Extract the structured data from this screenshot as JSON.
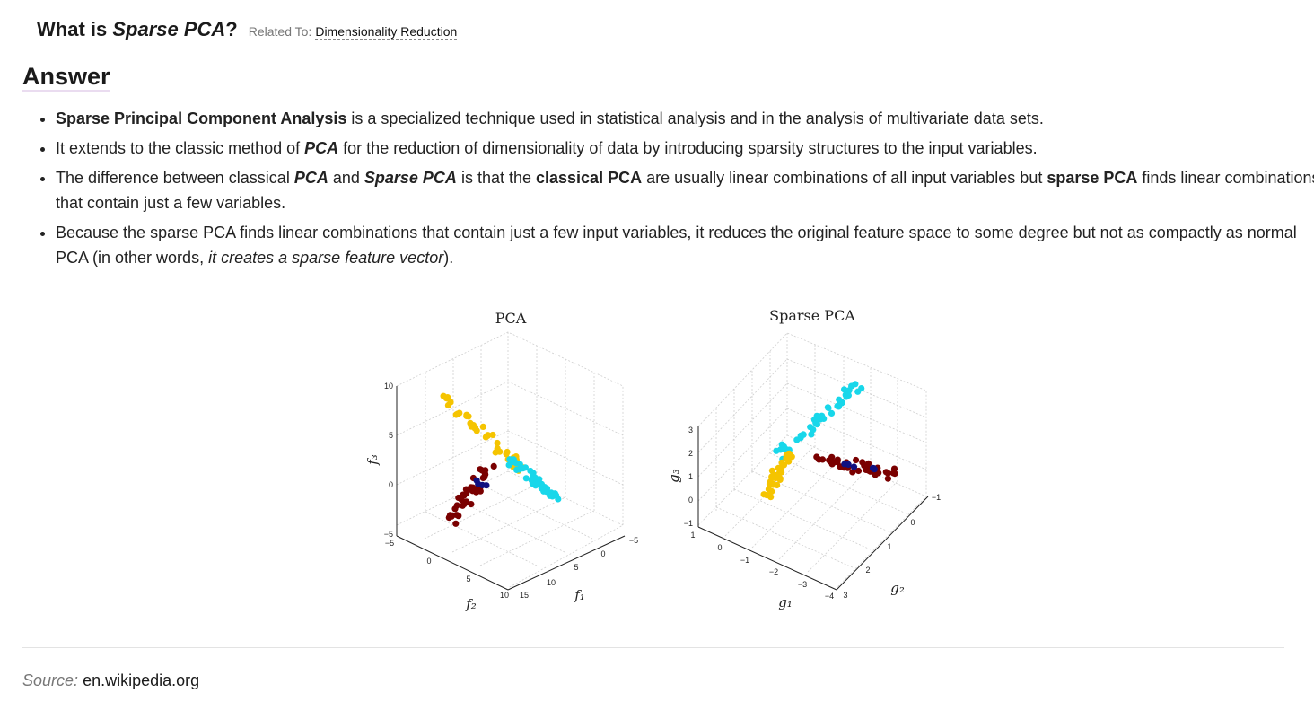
{
  "header": {
    "title_prefix": "What is ",
    "title_term": "Sparse PCA",
    "title_suffix": "?",
    "related_label": "Related To:",
    "related_link": "Dimensionality Reduction"
  },
  "answer_heading": "Answer",
  "bullets": {
    "b1": {
      "bold": "Sparse Principal Component Analysis",
      "rest": " is a specialized technique used in statistical analysis and in the analysis of multivariate data sets."
    },
    "b2": {
      "t1": "It extends to the classic method of ",
      "bi1": "PCA",
      "t2": " for the reduction of dimensionality of data by introducing sparsity structures to the input variables."
    },
    "b3": {
      "t1": "The difference between classical ",
      "bi1": "PCA",
      "t2": " and ",
      "bi2": "Sparse PCA",
      "t3": " is that the ",
      "b1": "classical PCA",
      "t4": " are usually linear combinations of all input variables but ",
      "b2": "sparse PCA",
      "t5": " finds linear combinations that contain just a few variables."
    },
    "b4": {
      "t1": "Because the sparse PCA finds linear combinations that contain just a few input variables, it reduces the original feature space to some degree but not as compactly as normal PCA (in other words, ",
      "i1": "it creates a sparse feature vector",
      "t2": ")."
    }
  },
  "figure": {
    "colors": {
      "yellow": "#f5c400",
      "cyan": "#18d7ea",
      "maroon": "#7a0000",
      "navy": "#101080"
    },
    "pca": {
      "title": "PCA",
      "xlabel": "f₂",
      "ylabel": "f₁",
      "zlabel": "f₃",
      "z_ticks": [
        "10",
        "5",
        "0",
        "−5"
      ],
      "x_ticks": [
        "−5",
        "0",
        "5",
        "10",
        "15"
      ],
      "y_ticks": [
        "15",
        "10",
        "5",
        "0",
        "−5"
      ]
    },
    "sparse": {
      "title": "Sparse PCA",
      "xlabel": "g₁",
      "ylabel": "g₂",
      "zlabel": "g₃",
      "z_ticks": [
        "3",
        "2",
        "1",
        "0",
        "−1"
      ],
      "x_ticks": [
        "1",
        "0",
        "−1",
        "−2",
        "−3",
        "−4"
      ],
      "y_ticks": [
        "3",
        "2",
        "1",
        "0",
        "−1"
      ]
    }
  },
  "source": {
    "label": "Source:",
    "value": "en.wikipedia.org"
  }
}
